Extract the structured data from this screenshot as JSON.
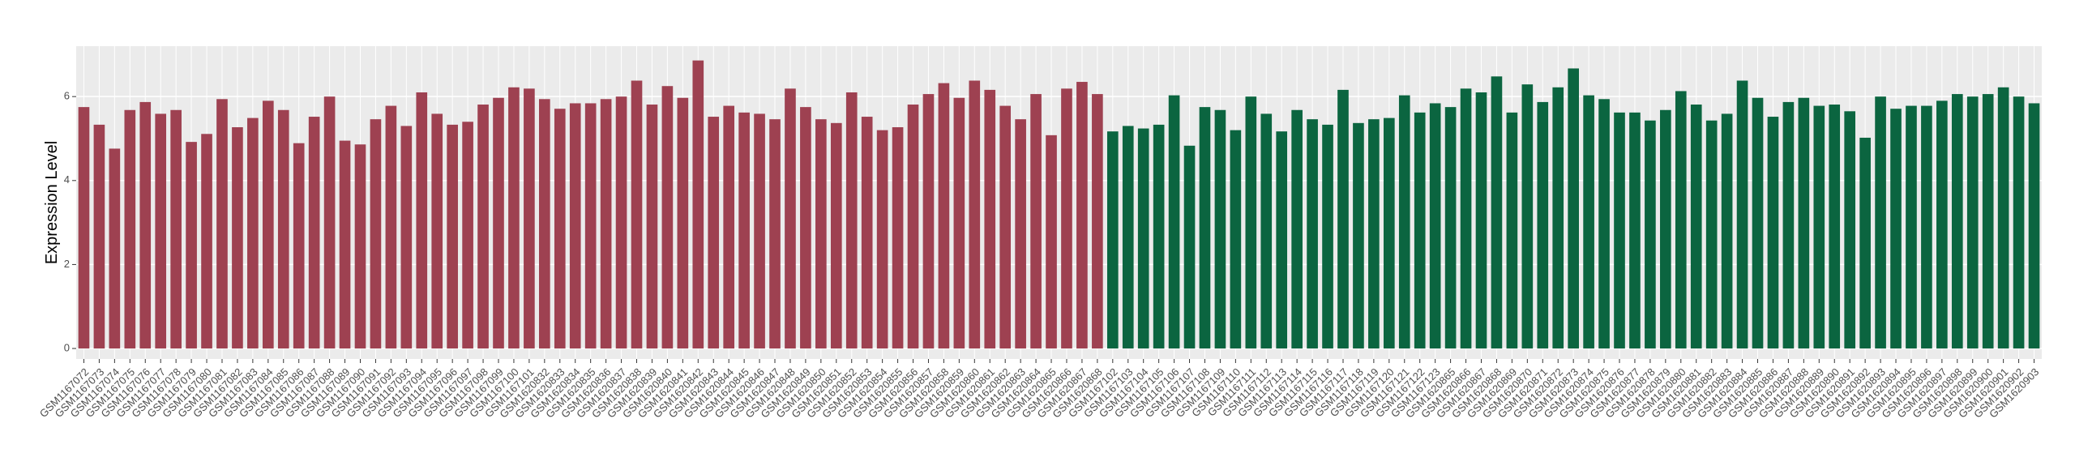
{
  "chart_data": {
    "type": "bar",
    "ylabel": "Expression Level",
    "ylim": [
      -0.25,
      7.2
    ],
    "yticks": [
      0,
      2,
      4,
      6
    ],
    "grid": true,
    "series": [
      {
        "color": "#9e4151",
        "categories": [
          "GSM1167072",
          "GSM1167073",
          "GSM1167074",
          "GSM1167075",
          "GSM1167076",
          "GSM1167077",
          "GSM1167078",
          "GSM1167079",
          "GSM1167080",
          "GSM1167081",
          "GSM1167082",
          "GSM1167083",
          "GSM1167084",
          "GSM1167085",
          "GSM1167086",
          "GSM1167087",
          "GSM1167088",
          "GSM1167089",
          "GSM1167090",
          "GSM1167091",
          "GSM1167092",
          "GSM1167093",
          "GSM1167094",
          "GSM1167095",
          "GSM1167096",
          "GSM1167097",
          "GSM1167098",
          "GSM1167099",
          "GSM1167100",
          "GSM1167101",
          "GSM1620832",
          "GSM1620833",
          "GSM1620834",
          "GSM1620835",
          "GSM1620836",
          "GSM1620837",
          "GSM1620838",
          "GSM1620839",
          "GSM1620840",
          "GSM1620841",
          "GSM1620842",
          "GSM1620843",
          "GSM1620844",
          "GSM1620845",
          "GSM1620846",
          "GSM1620847",
          "GSM1620848",
          "GSM1620849",
          "GSM1620850",
          "GSM1620851",
          "GSM1620852",
          "GSM1620853",
          "GSM1620854",
          "GSM1620855",
          "GSM1620856",
          "GSM1620857",
          "GSM1620858",
          "GSM1620859",
          "GSM1620860",
          "GSM1620861",
          "GSM1620862",
          "GSM1620863",
          "GSM1620864",
          "GSM1620865",
          "GSM1620866",
          "GSM1620867",
          "GSM1620868"
        ],
        "values": [
          5.75,
          5.33,
          4.76,
          5.68,
          5.87,
          5.59,
          5.68,
          4.92,
          5.11,
          5.94,
          5.27,
          5.49,
          5.9,
          5.68,
          4.89,
          5.52,
          6.0,
          4.95,
          4.86,
          5.46,
          5.78,
          5.3,
          6.1,
          5.59,
          5.33,
          5.4,
          5.81,
          5.97,
          6.22,
          6.19,
          5.94,
          5.71,
          5.84,
          5.84,
          5.94,
          6.0,
          6.38,
          5.81,
          6.25,
          5.97,
          6.86,
          5.52,
          5.78,
          5.62,
          5.59,
          5.46,
          6.19,
          5.75,
          5.46,
          5.37,
          6.1,
          5.52,
          5.2,
          5.27,
          5.81,
          6.06,
          6.32,
          5.97,
          6.38,
          6.16,
          5.78,
          5.46,
          6.06,
          5.08,
          6.19,
          6.35,
          6.06
        ]
      },
      {
        "color": "#0b6540",
        "categories": [
          "GSM1167102",
          "GSM1167103",
          "GSM1167104",
          "GSM1167105",
          "GSM1167106",
          "GSM1167107",
          "GSM1167108",
          "GSM1167109",
          "GSM1167110",
          "GSM1167111",
          "GSM1167112",
          "GSM1167113",
          "GSM1167114",
          "GSM1167115",
          "GSM1167116",
          "GSM1167117",
          "GSM1167118",
          "GSM1167119",
          "GSM1167120",
          "GSM1167121",
          "GSM1167122",
          "GSM1167123",
          "GSM1620865",
          "GSM1620866",
          "GSM1620867",
          "GSM1620868",
          "GSM1620869",
          "GSM1620870",
          "GSM1620871",
          "GSM1620872",
          "GSM1620873",
          "GSM1620874",
          "GSM1620875",
          "GSM1620876",
          "GSM1620877",
          "GSM1620878",
          "GSM1620879",
          "GSM1620880",
          "GSM1620881",
          "GSM1620882",
          "GSM1620883",
          "GSM1620884",
          "GSM1620885",
          "GSM1620886",
          "GSM1620887",
          "GSM1620888",
          "GSM1620889",
          "GSM1620890",
          "GSM1620891",
          "GSM1620892",
          "GSM1620893",
          "GSM1620894",
          "GSM1620895",
          "GSM1620896",
          "GSM1620897",
          "GSM1620898",
          "GSM1620899",
          "GSM1620900",
          "GSM1620901",
          "GSM1620902",
          "GSM1620903"
        ],
        "values": [
          5.17,
          5.3,
          5.24,
          5.33,
          6.03,
          4.83,
          5.75,
          5.68,
          5.2,
          6.0,
          5.59,
          5.17,
          5.68,
          5.46,
          5.33,
          6.16,
          5.37,
          5.46,
          5.49,
          6.03,
          5.62,
          5.84,
          5.75,
          6.19,
          6.1,
          6.48,
          5.62,
          6.29,
          5.87,
          6.22,
          6.67,
          6.03,
          5.94,
          5.62,
          5.62,
          5.43,
          5.68,
          6.13,
          5.81,
          5.43,
          5.59,
          6.38,
          5.97,
          5.52,
          5.87,
          5.97,
          5.78,
          5.81,
          5.65,
          5.02,
          6.0,
          5.71,
          5.78,
          5.78,
          5.9,
          6.06,
          6.0,
          6.06,
          6.22,
          6.0,
          5.84
        ]
      }
    ]
  }
}
